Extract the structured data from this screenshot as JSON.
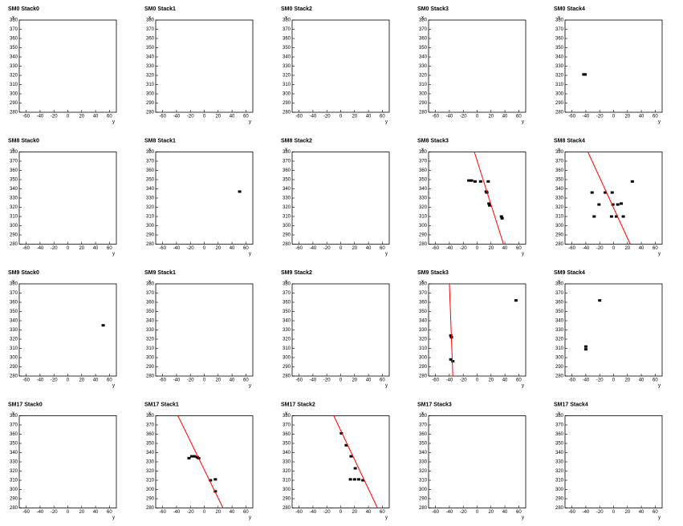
{
  "chart_data": [
    {
      "type": "scatter",
      "title": "SM0 Stack0",
      "xlabel": "y",
      "ylabel": "x",
      "xlim": [
        -70,
        70
      ],
      "ylim": [
        280,
        380
      ],
      "xticks": [
        -60,
        -40,
        -20,
        0,
        20,
        40,
        60
      ],
      "yticks": [
        280,
        290,
        300,
        310,
        320,
        330,
        340,
        350,
        360,
        370,
        380
      ]
    },
    {
      "type": "scatter",
      "title": "SM0 Stack1",
      "xlabel": "y",
      "ylabel": "x",
      "xlim": [
        -70,
        70
      ],
      "ylim": [
        280,
        380
      ],
      "xticks": [
        -60,
        -40,
        -20,
        0,
        20,
        40,
        60
      ],
      "yticks": [
        280,
        290,
        300,
        310,
        320,
        330,
        340,
        350,
        360,
        370,
        380
      ]
    },
    {
      "type": "scatter",
      "title": "SM0 Stack2",
      "xlabel": "y",
      "ylabel": "x",
      "xlim": [
        -70,
        70
      ],
      "ylim": [
        280,
        380
      ],
      "xticks": [
        -60,
        -40,
        -20,
        0,
        20,
        40,
        60
      ],
      "yticks": [
        280,
        290,
        300,
        310,
        320,
        330,
        340,
        350,
        360,
        370,
        380
      ]
    },
    {
      "type": "scatter",
      "title": "SM0 Stack3",
      "xlabel": "y",
      "ylabel": "x",
      "xlim": [
        -70,
        70
      ],
      "ylim": [
        280,
        380
      ],
      "xticks": [
        -60,
        -40,
        -20,
        0,
        20,
        40,
        60
      ],
      "yticks": [
        280,
        290,
        300,
        310,
        320,
        330,
        340,
        350,
        360,
        370,
        380
      ]
    },
    {
      "type": "scatter",
      "title": "SM0 Stack4",
      "xlabel": "y",
      "ylabel": "x",
      "xlim": [
        -70,
        70
      ],
      "ylim": [
        280,
        380
      ],
      "xticks": [
        -60,
        -40,
        -20,
        0,
        20,
        40,
        60
      ],
      "yticks": [
        280,
        290,
        300,
        310,
        320,
        330,
        340,
        350,
        360,
        370,
        380
      ],
      "series": [
        {
          "color": "#000000",
          "x": [
            -43,
            -41
          ],
          "values": [
            321,
            321
          ]
        }
      ]
    },
    {
      "type": "scatter",
      "title": "SM8 Stack0",
      "xlabel": "y",
      "ylabel": "x",
      "xlim": [
        -70,
        70
      ],
      "ylim": [
        280,
        380
      ],
      "xticks": [
        -60,
        -40,
        -20,
        0,
        20,
        40,
        60
      ],
      "yticks": [
        280,
        290,
        300,
        310,
        320,
        330,
        340,
        350,
        360,
        370,
        380
      ]
    },
    {
      "type": "scatter",
      "title": "SM8 Stack1",
      "xlabel": "y",
      "ylabel": "x",
      "xlim": [
        -70,
        70
      ],
      "ylim": [
        280,
        380
      ],
      "xticks": [
        -60,
        -40,
        -20,
        0,
        20,
        40,
        60
      ],
      "yticks": [
        280,
        290,
        300,
        310,
        320,
        330,
        340,
        350,
        360,
        370,
        380
      ],
      "series": [
        {
          "color": "#000000",
          "x": [
            51
          ],
          "values": [
            337
          ]
        }
      ]
    },
    {
      "type": "scatter",
      "title": "SM8 Stack2",
      "xlabel": "y",
      "ylabel": "x",
      "xlim": [
        -70,
        70
      ],
      "ylim": [
        280,
        380
      ],
      "xticks": [
        -60,
        -40,
        -20,
        0,
        20,
        40,
        60
      ],
      "yticks": [
        280,
        290,
        300,
        310,
        320,
        330,
        340,
        350,
        360,
        370,
        380
      ]
    },
    {
      "type": "scatter",
      "title": "SM8 Stack3",
      "xlabel": "y",
      "ylabel": "x",
      "xlim": [
        -70,
        70
      ],
      "ylim": [
        280,
        380
      ],
      "xticks": [
        -60,
        -40,
        -20,
        0,
        20,
        40,
        60
      ],
      "yticks": [
        280,
        290,
        300,
        310,
        320,
        330,
        340,
        350,
        360,
        370,
        380
      ],
      "series": [
        {
          "color": "#000000",
          "x": [
            -12,
            -8,
            -3,
            5,
            16,
            14,
            13,
            17,
            18,
            35,
            36
          ],
          "values": [
            349,
            349,
            348,
            348,
            348,
            336,
            337,
            324,
            322,
            310,
            308
          ]
        },
        {
          "type": "line",
          "color": "#ff0000",
          "x": [
            -4,
            38
          ],
          "values": [
            380,
            280
          ]
        }
      ]
    },
    {
      "type": "scatter",
      "title": "SM8 Stack4",
      "xlabel": "y",
      "ylabel": "x",
      "xlim": [
        -70,
        70
      ],
      "ylim": [
        280,
        380
      ],
      "xticks": [
        -60,
        -40,
        -20,
        0,
        20,
        40,
        60
      ],
      "yticks": [
        280,
        290,
        300,
        310,
        320,
        330,
        340,
        350,
        360,
        370,
        380
      ],
      "series": [
        {
          "color": "#000000",
          "x": [
            -31,
            -12,
            -2,
            -21,
            6,
            11,
            -1,
            -28,
            -3,
            4,
            14,
            27
          ],
          "values": [
            336,
            336,
            336,
            323,
            323,
            324,
            323,
            310,
            310,
            310,
            310,
            348
          ]
        },
        {
          "type": "line",
          "color": "#ff0000",
          "x": [
            -37,
            24
          ],
          "values": [
            380,
            280
          ]
        }
      ]
    },
    {
      "type": "scatter",
      "title": "SM9 Stack0",
      "xlabel": "y",
      "ylabel": "x",
      "xlim": [
        -70,
        70
      ],
      "ylim": [
        280,
        380
      ],
      "xticks": [
        -60,
        -40,
        -20,
        0,
        20,
        40,
        60
      ],
      "yticks": [
        280,
        290,
        300,
        310,
        320,
        330,
        340,
        350,
        360,
        370,
        380
      ],
      "series": [
        {
          "color": "#000000",
          "x": [
            51
          ],
          "values": [
            335
          ]
        }
      ]
    },
    {
      "type": "scatter",
      "title": "SM9 Stack1",
      "xlabel": "y",
      "ylabel": "x",
      "xlim": [
        -70,
        70
      ],
      "ylim": [
        280,
        380
      ],
      "xticks": [
        -60,
        -40,
        -20,
        0,
        20,
        40,
        60
      ],
      "yticks": [
        280,
        290,
        300,
        310,
        320,
        330,
        340,
        350,
        360,
        370,
        380
      ]
    },
    {
      "type": "scatter",
      "title": "SM9 Stack2",
      "xlabel": "y",
      "ylabel": "x",
      "xlim": [
        -70,
        70
      ],
      "ylim": [
        280,
        380
      ],
      "xticks": [
        -60,
        -40,
        -20,
        0,
        20,
        40,
        60
      ],
      "yticks": [
        280,
        290,
        300,
        310,
        320,
        330,
        340,
        350,
        360,
        370,
        380
      ]
    },
    {
      "type": "scatter",
      "title": "SM9 Stack3",
      "xlabel": "y",
      "ylabel": "x",
      "xlim": [
        -70,
        70
      ],
      "ylim": [
        280,
        380
      ],
      "xticks": [
        -60,
        -40,
        -20,
        0,
        20,
        40,
        60
      ],
      "yticks": [
        280,
        290,
        300,
        310,
        320,
        330,
        340,
        350,
        360,
        370,
        380
      ],
      "series": [
        {
          "color": "#000000",
          "x": [
            -38,
            -37,
            -38,
            -35,
            56
          ],
          "values": [
            324,
            322,
            298,
            296,
            362
          ]
        },
        {
          "type": "line",
          "color": "#ff0000",
          "x": [
            -40,
            -35
          ],
          "values": [
            380,
            280
          ]
        }
      ]
    },
    {
      "type": "scatter",
      "title": "SM9 Stack4",
      "xlabel": "y",
      "ylabel": "x",
      "xlim": [
        -70,
        70
      ],
      "ylim": [
        280,
        380
      ],
      "xticks": [
        -60,
        -40,
        -20,
        0,
        20,
        40,
        60
      ],
      "yticks": [
        280,
        290,
        300,
        310,
        320,
        330,
        340,
        350,
        360,
        370,
        380
      ],
      "series": [
        {
          "color": "#000000",
          "x": [
            -20,
            -40,
            -40
          ],
          "values": [
            362,
            312,
            309
          ]
        }
      ]
    },
    {
      "type": "scatter",
      "title": "SM17 Stack0",
      "xlabel": "y",
      "ylabel": "x",
      "xlim": [
        -70,
        70
      ],
      "ylim": [
        280,
        380
      ],
      "xticks": [
        -60,
        -40,
        -20,
        0,
        20,
        40,
        60
      ],
      "yticks": [
        280,
        290,
        300,
        310,
        320,
        330,
        340,
        350,
        360,
        370,
        380
      ]
    },
    {
      "type": "scatter",
      "title": "SM17 Stack1",
      "xlabel": "y",
      "ylabel": "x",
      "xlim": [
        -70,
        70
      ],
      "ylim": [
        280,
        380
      ],
      "xticks": [
        -60,
        -40,
        -20,
        0,
        20,
        40,
        60
      ],
      "yticks": [
        280,
        290,
        300,
        310,
        320,
        330,
        340,
        350,
        360,
        370,
        380
      ],
      "series": [
        {
          "color": "#000000",
          "x": [
            -22,
            -18,
            -14,
            -10,
            -8,
            9,
            16,
            16
          ],
          "values": [
            334,
            336,
            336,
            335,
            334,
            310,
            311,
            298
          ]
        },
        {
          "type": "line",
          "color": "#ff0000",
          "x": [
            -38,
            27
          ],
          "values": [
            380,
            280
          ]
        }
      ]
    },
    {
      "type": "scatter",
      "title": "SM17 Stack2",
      "xlabel": "y",
      "ylabel": "x",
      "xlim": [
        -70,
        70
      ],
      "ylim": [
        280,
        380
      ],
      "xticks": [
        -60,
        -40,
        -20,
        0,
        20,
        40,
        60
      ],
      "yticks": [
        280,
        290,
        300,
        310,
        320,
        330,
        340,
        350,
        360,
        370,
        380
      ],
      "series": [
        {
          "color": "#000000",
          "x": [
            1,
            8,
            15,
            21,
            14,
            20,
            26,
            32
          ],
          "values": [
            361,
            348,
            336,
            323,
            311,
            311,
            311,
            310
          ]
        },
        {
          "type": "line",
          "color": "#ff0000",
          "x": [
            -10,
            53
          ],
          "values": [
            380,
            280
          ]
        }
      ]
    },
    {
      "type": "scatter",
      "title": "SM17 Stack3",
      "xlabel": "y",
      "ylabel": "x",
      "xlim": [
        -70,
        70
      ],
      "ylim": [
        280,
        380
      ],
      "xticks": [
        -60,
        -40,
        -20,
        0,
        20,
        40,
        60
      ],
      "yticks": [
        280,
        290,
        300,
        310,
        320,
        330,
        340,
        350,
        360,
        370,
        380
      ]
    },
    {
      "type": "scatter",
      "title": "SM17 Stack4",
      "xlabel": "y",
      "ylabel": "x",
      "xlim": [
        -70,
        70
      ],
      "ylim": [
        280,
        380
      ],
      "xticks": [
        -60,
        -40,
        -20,
        0,
        20,
        40,
        60
      ],
      "yticks": [
        280,
        290,
        300,
        310,
        320,
        330,
        340,
        350,
        360,
        370,
        380
      ]
    }
  ]
}
